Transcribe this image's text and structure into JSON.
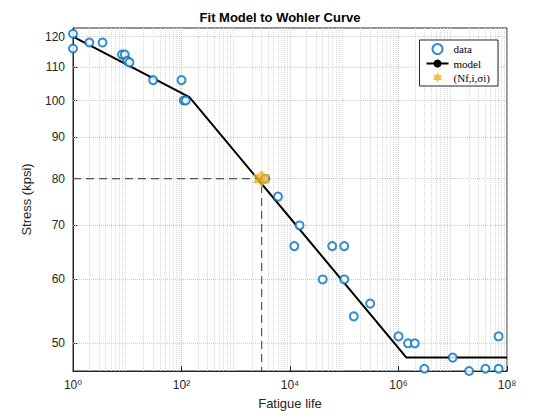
{
  "chart_data": {
    "type": "scatter",
    "title": "Fit Model to Wohler Curve",
    "x_label": "Fatigue life",
    "y_label": "Stress (kpsi)",
    "log": true,
    "grid": true,
    "legend": "upper right",
    "xlim": [
      1,
      100000000
    ],
    "xticks": [
      {
        "value": 1,
        "label": "10⁰"
      },
      {
        "value": 100,
        "label": "10²"
      },
      {
        "value": 10000,
        "label": "10⁴"
      },
      {
        "value": 1000000,
        "label": "10⁶"
      },
      {
        "value": 100000000,
        "label": "10⁸"
      }
    ],
    "ylim": [
      46.2,
      123
    ],
    "yticks": [
      50,
      60,
      70,
      80,
      90,
      100,
      110,
      120
    ],
    "series": [
      {
        "name": "data",
        "type": "scatter",
        "marker": "circle",
        "color": "#0072bd",
        "x": [
          1,
          1,
          2,
          3.5,
          8,
          9,
          10,
          11,
          30,
          100,
          110,
          120,
          3500,
          6000,
          15000,
          12000,
          40000,
          60000,
          100000,
          100000,
          150000,
          300000,
          1000000,
          1500000,
          2000000,
          3000000,
          10000000,
          20000000,
          40000000,
          70000000,
          70000000
        ],
        "values": [
          121,
          116,
          118,
          118,
          114,
          114,
          112,
          111.5,
          106,
          106,
          100,
          100,
          80,
          76,
          70,
          66,
          60,
          66,
          66,
          60,
          54,
          56,
          51,
          50,
          50,
          46.5,
          48,
          46.2,
          46.5,
          46.5,
          51
        ]
      },
      {
        "name": "model",
        "type": "line",
        "color": "#000000",
        "line_style": "solid",
        "x": [
          1,
          140,
          1400000,
          100000000
        ],
        "values": [
          120,
          101,
          48,
          48
        ]
      },
      {
        "name": "(Nf,i,σi)",
        "type": "scatter",
        "marker": "star",
        "color": "#edb120",
        "x": [
          3000
        ],
        "values": [
          80
        ]
      }
    ]
  }
}
